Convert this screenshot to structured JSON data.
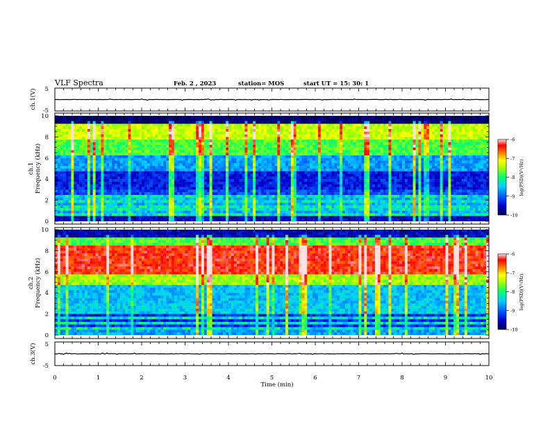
{
  "header": {
    "title": "VLF Spectra",
    "date": "Feb. 2 , 2023",
    "station": "station= MOS",
    "start": "start  UT =  15: 30: 1"
  },
  "colors": {
    "spectrum_scale": [
      "#000040",
      "#0000c8",
      "#0050ff",
      "#00c8ff",
      "#00ff80",
      "#80ff00",
      "#ffff00",
      "#ff8000",
      "#ff0000",
      "#ffffff"
    ]
  },
  "chart_data": [
    {
      "type": "line",
      "name": "ch1-waveform",
      "ylabel": "ch.1(V)",
      "ylim": [
        -5,
        5
      ],
      "yticks": [
        "5",
        "-5"
      ],
      "xlim": [
        0,
        10
      ],
      "baseline": 0
    },
    {
      "type": "heatmap",
      "name": "ch1-spectrogram",
      "ylabel": "ch.1\nFrequency (kHz)",
      "ylim": [
        0,
        10
      ],
      "yticks": [
        "0",
        "2",
        "4",
        "6",
        "8",
        "10"
      ],
      "xlim": [
        0,
        10
      ],
      "colorbar": {
        "label": "log(PSD)(V²/Hz)",
        "ticks": [
          "-6",
          "-7",
          "-8",
          "-9",
          "-10"
        ],
        "range": [
          -10,
          -6
        ]
      }
    },
    {
      "type": "heatmap",
      "name": "ch2-spectrogram",
      "ylabel": "ch.2\nFrequency (kHz)",
      "ylim": [
        0,
        10
      ],
      "yticks": [
        "0",
        "2",
        "4",
        "6",
        "8",
        "10"
      ],
      "xlim": [
        0,
        10
      ],
      "colorbar": {
        "label": "log(PSD)(V²/Hz)",
        "ticks": [
          "-6",
          "-7",
          "-8",
          "-9",
          "-10"
        ],
        "range": [
          -10,
          -6
        ]
      }
    },
    {
      "type": "line",
      "name": "ch3-waveform",
      "ylabel": "ch.3(V)",
      "ylim": [
        -5,
        5
      ],
      "yticks": [
        "5",
        "-5"
      ],
      "xlim": [
        0,
        10
      ],
      "baseline": 0,
      "xlabel": "Time  (min)",
      "xticks": [
        "0",
        "1",
        "2",
        "3",
        "4",
        "5",
        "6",
        "7",
        "8",
        "9",
        "10"
      ]
    }
  ]
}
